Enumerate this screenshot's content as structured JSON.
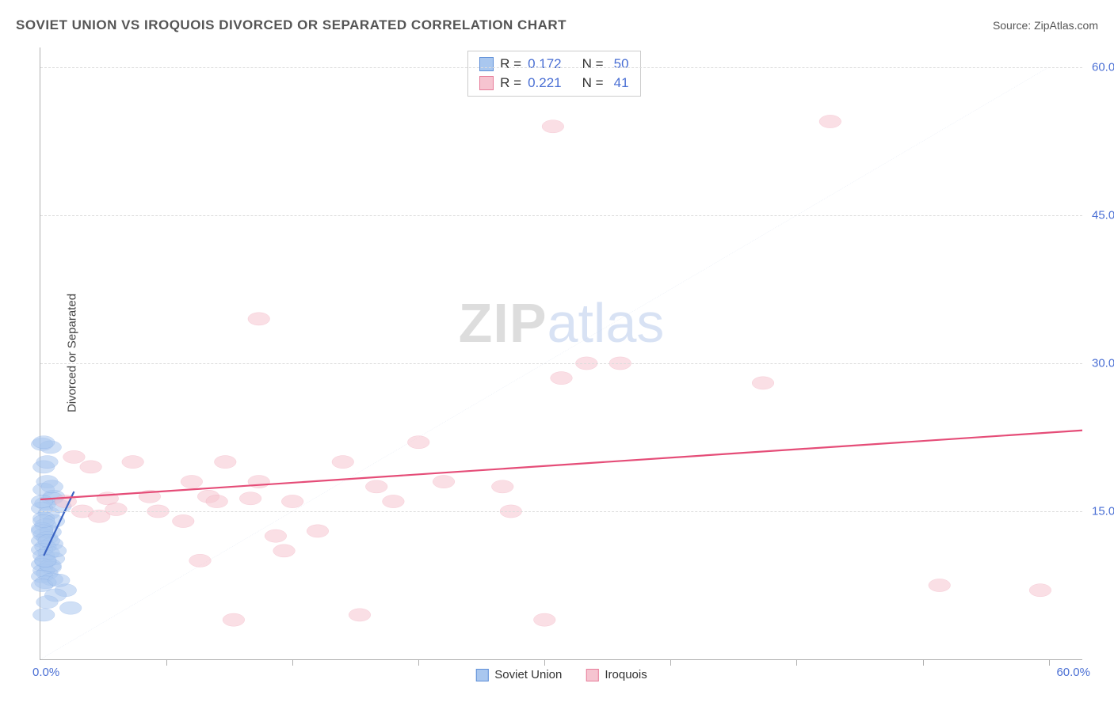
{
  "title": "SOVIET UNION VS IROQUOIS DIVORCED OR SEPARATED CORRELATION CHART",
  "source": "Source: ZipAtlas.com",
  "ylabel": "Divorced or Separated",
  "watermark": {
    "part1": "ZIP",
    "part2": "atlas"
  },
  "series": [
    {
      "name": "Soviet Union",
      "fill": "#a9c7ef",
      "stroke": "#5e8fd8",
      "marker_radius": 9,
      "reg_line": {
        "x1": 0.2,
        "y1": 10.5,
        "x2": 2.0,
        "y2": 17.0,
        "color": "#3a63c2",
        "width": 2.2
      },
      "points": [
        [
          0.1,
          21.8
        ],
        [
          0.6,
          21.5
        ],
        [
          0.2,
          19.5
        ],
        [
          0.4,
          18.0
        ],
        [
          0.2,
          17.2
        ],
        [
          0.7,
          16.3
        ],
        [
          0.3,
          15.8
        ],
        [
          0.1,
          15.3
        ],
        [
          0.5,
          14.8
        ],
        [
          0.2,
          14.3
        ],
        [
          0.8,
          14.0
        ],
        [
          0.3,
          13.6
        ],
        [
          0.1,
          13.2
        ],
        [
          0.6,
          12.9
        ],
        [
          0.2,
          12.6
        ],
        [
          0.4,
          12.3
        ],
        [
          0.1,
          12.0
        ],
        [
          0.7,
          11.7
        ],
        [
          0.3,
          11.4
        ],
        [
          0.1,
          11.1
        ],
        [
          0.5,
          10.8
        ],
        [
          0.2,
          10.5
        ],
        [
          0.8,
          10.2
        ],
        [
          0.3,
          9.9
        ],
        [
          0.1,
          9.6
        ],
        [
          0.6,
          9.3
        ],
        [
          0.2,
          9.0
        ],
        [
          0.4,
          8.7
        ],
        [
          0.1,
          8.4
        ],
        [
          0.7,
          8.1
        ],
        [
          0.3,
          7.8
        ],
        [
          0.1,
          7.5
        ],
        [
          1.5,
          7.0
        ],
        [
          0.9,
          6.5
        ],
        [
          0.4,
          5.8
        ],
        [
          1.8,
          5.2
        ],
        [
          0.2,
          4.5
        ],
        [
          0.8,
          16.5
        ],
        [
          1.2,
          15.5
        ],
        [
          0.1,
          13.0
        ],
        [
          0.5,
          12.0
        ],
        [
          0.9,
          11.0
        ],
        [
          0.2,
          14.0
        ],
        [
          0.6,
          9.5
        ],
        [
          1.1,
          8.0
        ],
        [
          0.3,
          10.0
        ],
        [
          0.7,
          17.5
        ],
        [
          0.1,
          16.0
        ],
        [
          0.4,
          20.0
        ],
        [
          0.2,
          22.0
        ]
      ]
    },
    {
      "name": "Iroquois",
      "fill": "#f6c4d0",
      "stroke": "#e77d9a",
      "marker_radius": 9,
      "reg_line": {
        "x1": 0,
        "y1": 16.2,
        "x2": 62,
        "y2": 23.2,
        "color": "#e54d78",
        "width": 2.2
      },
      "points": [
        [
          1.5,
          16.0
        ],
        [
          2.0,
          20.5
        ],
        [
          2.5,
          15.0
        ],
        [
          3.0,
          19.5
        ],
        [
          3.5,
          14.5
        ],
        [
          4.0,
          16.3
        ],
        [
          4.5,
          15.2
        ],
        [
          5.5,
          20.0
        ],
        [
          6.5,
          16.5
        ],
        [
          7.0,
          15.0
        ],
        [
          8.5,
          14.0
        ],
        [
          9.0,
          18.0
        ],
        [
          9.5,
          10.0
        ],
        [
          10.0,
          16.5
        ],
        [
          10.5,
          16.0
        ],
        [
          11.0,
          20.0
        ],
        [
          11.5,
          4.0
        ],
        [
          12.5,
          16.3
        ],
        [
          13.0,
          18.0
        ],
        [
          14.0,
          12.5
        ],
        [
          14.5,
          11.0
        ],
        [
          15.0,
          16.0
        ],
        [
          16.5,
          13.0
        ],
        [
          18.0,
          20.0
        ],
        [
          19.0,
          4.5
        ],
        [
          13.0,
          34.5
        ],
        [
          20.0,
          17.5
        ],
        [
          21.0,
          16.0
        ],
        [
          22.5,
          22.0
        ],
        [
          24.0,
          18.0
        ],
        [
          27.5,
          17.5
        ],
        [
          28.0,
          15.0
        ],
        [
          30.0,
          4.0
        ],
        [
          31.0,
          28.5
        ],
        [
          30.5,
          54.0
        ],
        [
          32.5,
          30.0
        ],
        [
          34.5,
          30.0
        ],
        [
          43.0,
          28.0
        ],
        [
          47.0,
          54.5
        ],
        [
          53.5,
          7.5
        ],
        [
          59.5,
          7.0
        ]
      ]
    }
  ],
  "stats": [
    {
      "swatch_fill": "#a9c7ef",
      "swatch_stroke": "#5e8fd8",
      "r_label": "R =",
      "r": "0.172",
      "n_label": "N =",
      "n": "50"
    },
    {
      "swatch_fill": "#f6c4d0",
      "swatch_stroke": "#e77d9a",
      "r_label": "R =",
      "r": "0.221",
      "n_label": "N =",
      "n": "41"
    }
  ],
  "axes": {
    "xmin": 0,
    "xmax": 62,
    "ymin": 0,
    "ymax": 62,
    "x_min_label": "0.0%",
    "x_max_label": "60.0%",
    "y_ticks": [
      {
        "v": 15,
        "label": "15.0%"
      },
      {
        "v": 30,
        "label": "30.0%"
      },
      {
        "v": 45,
        "label": "45.0%"
      },
      {
        "v": 60,
        "label": "60.0%"
      }
    ],
    "x_tick_values": [
      7.5,
      15,
      22.5,
      30,
      37.5,
      45,
      52.5,
      60
    ],
    "grid_color": "#dcdcdc",
    "diagonal": {
      "color": "#b9c8e2",
      "dash": "7,7"
    }
  },
  "legend": [
    {
      "label": "Soviet Union",
      "fill": "#a9c7ef",
      "stroke": "#5e8fd8"
    },
    {
      "label": "Iroquois",
      "fill": "#f6c4d0",
      "stroke": "#e77d9a"
    }
  ]
}
